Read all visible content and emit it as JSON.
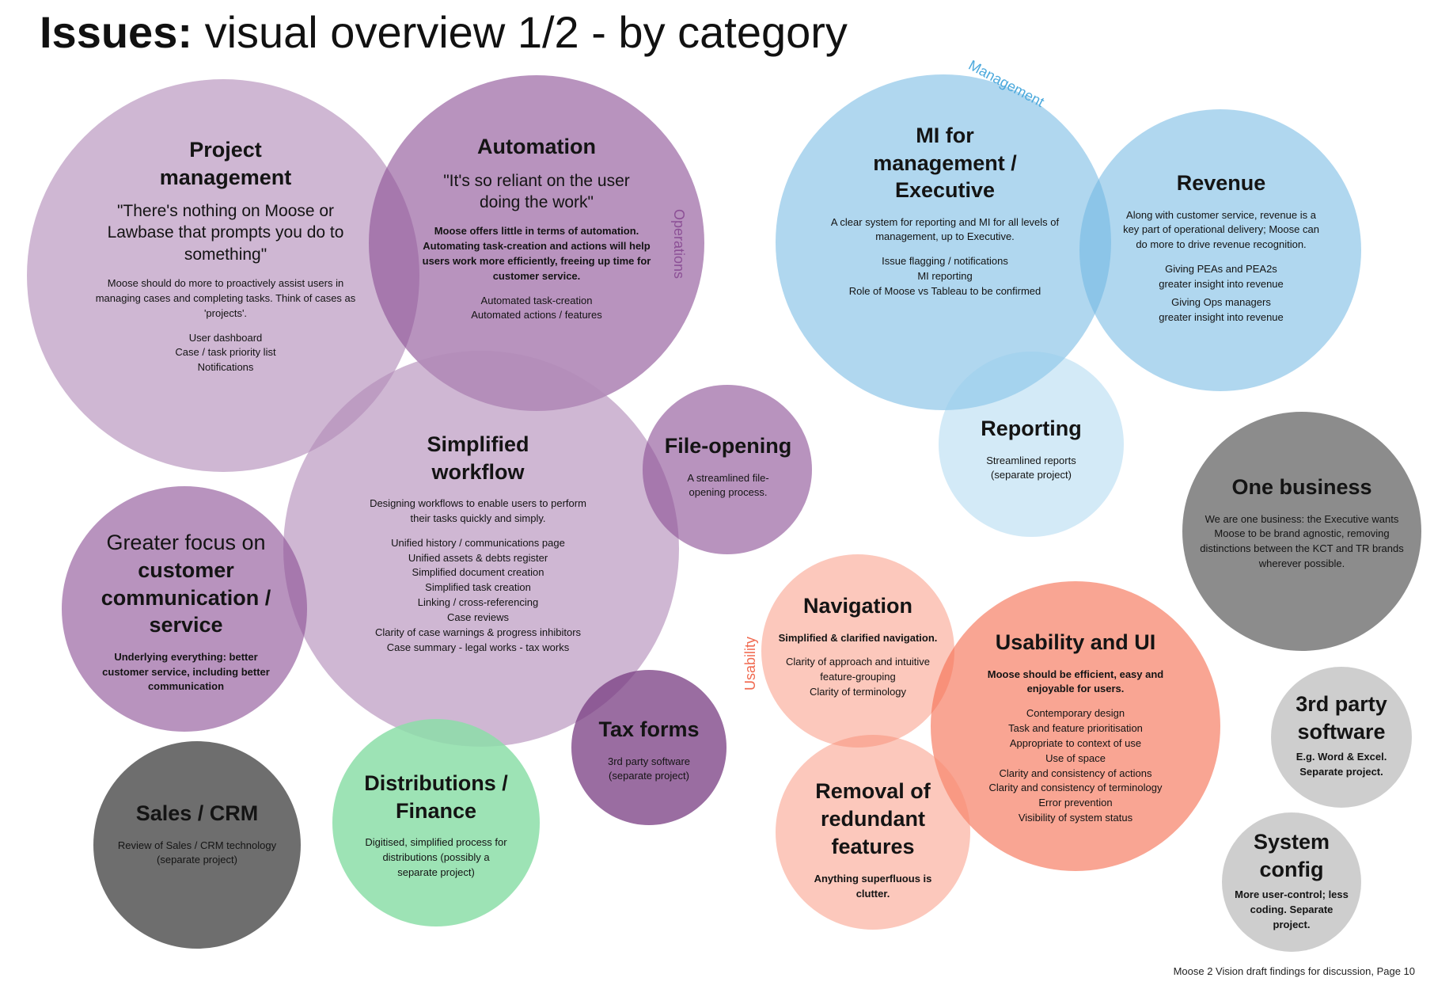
{
  "title": {
    "bold": "Issues:",
    "rest": "visual overview 1/2 - by category"
  },
  "group_labels": {
    "operations": "Operations",
    "management": "Management",
    "usability": "Usability"
  },
  "colors": {
    "operations": "#8c5096",
    "management": "#4aa8dc",
    "usability": "#f06a50",
    "finance": "#8cdea8",
    "other": "#5a5a5a"
  },
  "bubbles": {
    "project_management": {
      "heading": "Project management",
      "quote": "\"There's nothing on Moose or Lawbase that prompts you do to something\"",
      "summary": "Moose should do more to proactively assist users in managing cases and completing tasks. Think of cases as 'projects'.",
      "points": [
        "User dashboard",
        "Case / task priority list",
        "Notifications"
      ]
    },
    "automation": {
      "heading": "Automation",
      "quote": "\"It's so reliant on the user doing the work\"",
      "summary": "Moose offers little in terms of automation. Automating task-creation and actions will help users work more efficiently, freeing up time for customer service.",
      "points": [
        "Automated task-creation",
        "Automated actions / features"
      ]
    },
    "simplified_workflow": {
      "heading": "Simplified workflow",
      "summary": "Designing workflows to enable users to perform their tasks quickly and simply.",
      "points": [
        "Unified history / communications page",
        "Unified assets & debts register",
        "Simplified document creation",
        "Simplified task creation",
        "Linking / cross-referencing",
        "Case reviews",
        "Clarity of case warnings & progress inhibitors",
        "Case summary - legal works - tax works"
      ]
    },
    "file_opening": {
      "heading": "File-opening",
      "summary": "A streamlined file-opening process."
    },
    "customer_focus": {
      "prefix": "Greater focus on",
      "heading": "customer communication / service",
      "summary": "Underlying everything: better customer service, including better communication"
    },
    "tax_forms": {
      "heading": "Tax forms",
      "summary": "3rd party software (separate project)"
    },
    "sales_crm": {
      "heading": "Sales / CRM",
      "summary": "Review of Sales / CRM technology (separate project)"
    },
    "distributions": {
      "heading": "Distributions / Finance",
      "summary": "Digitised, simplified process for distributions (possibly a separate project)"
    },
    "mi": {
      "heading": "MI for management / Executive",
      "summary": "A clear system for reporting and MI for all levels of management, up to Executive.",
      "points": [
        "Issue flagging / notifications",
        "MI reporting",
        "Role of Moose vs Tableau to be confirmed"
      ]
    },
    "revenue": {
      "heading": "Revenue",
      "summary": "Along with customer service, revenue is a key part of operational delivery; Moose can do more to drive revenue recognition.",
      "points": [
        "Giving PEAs and PEA2s",
        "greater insight into revenue",
        "Giving Ops managers",
        "greater insight into revenue"
      ]
    },
    "reporting": {
      "heading": "Reporting",
      "summary": "Streamlined reports (separate project)"
    },
    "one_business": {
      "heading": "One business",
      "summary": "We are one business: the Executive wants Moose to be brand agnostic, removing distinctions between the KCT and TR brands wherever possible."
    },
    "navigation": {
      "heading": "Navigation",
      "summary": "Simplified & clarified navigation.",
      "points": [
        "Clarity of approach and intuitive",
        "feature-grouping",
        "Clarity of terminology"
      ]
    },
    "usability_ui": {
      "heading": "Usability and UI",
      "summary": "Moose should be efficient, easy and enjoyable for users.",
      "points": [
        "Contemporary design",
        "Task and feature prioritisation",
        "Appropriate to context of use",
        "Use of space",
        "Clarity and consistency of actions",
        "Clarity and consistency of terminology",
        "Error prevention",
        "Visibility of system status"
      ]
    },
    "removal": {
      "heading": "Removal of redundant features",
      "summary": "Anything superfluous is clutter."
    },
    "third_party": {
      "heading": "3rd party software",
      "summary": "E.g. Word & Excel. Separate project."
    },
    "system_config": {
      "heading": "System config",
      "summary": "More user-control; less coding. Separate project."
    }
  },
  "footer": "Moose 2 Vision draft findings for discussion, Page 10"
}
